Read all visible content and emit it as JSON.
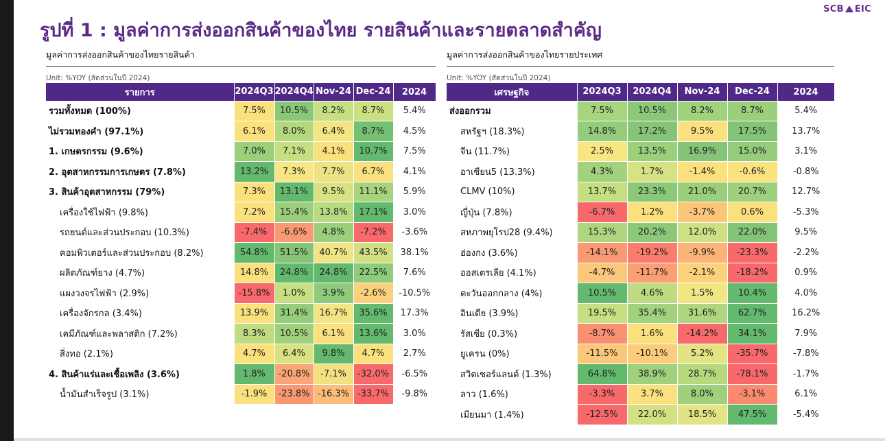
{
  "brand": {
    "left": "SCB",
    "right": "EIC"
  },
  "title": "รูปที่ 1 : มูลค่าการส่งออกสินค้าของไทย รายสินค้าและรายตลาดสำคัญ",
  "left": {
    "subtitle": "มูลค่าการส่งออกสินค้าของไทยรายสินค้า",
    "unit": "Unit: %YOY (สัดส่วนในปี 2024)",
    "headers": [
      "รายการ",
      "2024Q3",
      "2024Q4",
      "Nov-24",
      "Dec-24",
      "2024"
    ],
    "rows": [
      {
        "name": "รวมทั้งหมด (100%)",
        "style": "bold",
        "values": [
          "7.5%",
          "10.5%",
          "8.2%",
          "8.7%",
          "5.4%"
        ],
        "colors": [
          "#fbe17e",
          "#88c878",
          "#c6df82",
          "#c9e083"
        ]
      },
      {
        "name": "ไม่รวมทองคำ (97.1%)",
        "style": "bold",
        "values": [
          "6.1%",
          "8.0%",
          "6.4%",
          "8.7%",
          "4.5%"
        ],
        "colors": [
          "#fbe17e",
          "#b4d87e",
          "#f3e583",
          "#76c073"
        ]
      },
      {
        "name": "1. เกษตรกรรม (9.6%)",
        "style": "bold",
        "values": [
          "7.0%",
          "7.1%",
          "4.1%",
          "10.7%",
          "7.5%"
        ],
        "colors": [
          "#9ccf7c",
          "#c7df82",
          "#fbe17e",
          "#63b96e"
        ]
      },
      {
        "name": "2. อุตสาหกรรมการเกษตร (7.8%)",
        "style": "bold",
        "values": [
          "13.2%",
          "7.3%",
          "7.7%",
          "6.7%",
          "4.1%"
        ],
        "colors": [
          "#63b96e",
          "#f6e684",
          "#ece484",
          "#fbe17e"
        ]
      },
      {
        "name": "3. สินค้าอุตสาหกรรม (79%)",
        "style": "bold",
        "values": [
          "7.3%",
          "13.1%",
          "9.5%",
          "11.1%",
          "5.9%"
        ],
        "colors": [
          "#fbe17e",
          "#63b96e",
          "#d8e283",
          "#a9d47e"
        ]
      },
      {
        "name": "เครื่องใช้ไฟฟ้า (9.8%)",
        "style": "indent",
        "values": [
          "7.2%",
          "15.4%",
          "13.8%",
          "17.1%",
          "3.0%"
        ],
        "colors": [
          "#fbe17e",
          "#9ccf7c",
          "#b9da80",
          "#63b96e"
        ]
      },
      {
        "name": "รถยนต์และส่วนประกอบ (10.3%)",
        "style": "indent",
        "values": [
          "-7.4%",
          "-6.6%",
          "4.8%",
          "-7.2%",
          "-3.6%"
        ],
        "colors": [
          "#f8696b",
          "#fa9a74",
          "#9ccf7c",
          "#f8696b"
        ]
      },
      {
        "name": "คอมพิวเตอร์และส่วนประกอบ (8.2%)",
        "style": "indent",
        "values": [
          "54.8%",
          "51.5%",
          "40.7%",
          "43.5%",
          "38.1%"
        ],
        "colors": [
          "#63b96e",
          "#86c577",
          "#f0e584",
          "#d2e083"
        ]
      },
      {
        "name": "ผลิตภัณฑ์ยาง (4.7%)",
        "style": "indent",
        "values": [
          "14.8%",
          "24.8%",
          "24.8%",
          "22.5%",
          "7.6%"
        ],
        "colors": [
          "#fbe17e",
          "#63b96e",
          "#63b96e",
          "#8fcb7a"
        ]
      },
      {
        "name": "แผงวงจรไฟฟ้า (2.9%)",
        "style": "indent",
        "values": [
          "-15.8%",
          "1.0%",
          "3.9%",
          "-2.6%",
          "-10.5%"
        ],
        "colors": [
          "#f8696b",
          "#c6df82",
          "#8fcb7a",
          "#fbd27b"
        ]
      },
      {
        "name": "เครื่องจักรกล (3.4%)",
        "style": "indent",
        "values": [
          "13.9%",
          "31.4%",
          "16.7%",
          "35.6%",
          "17.3%"
        ],
        "colors": [
          "#fbe17e",
          "#96cd7b",
          "#f1e584",
          "#63b96e"
        ]
      },
      {
        "name": "เคมีภัณฑ์และพลาสติก (7.2%)",
        "style": "indent",
        "values": [
          "8.3%",
          "10.5%",
          "6.1%",
          "13.6%",
          "3.0%"
        ],
        "colors": [
          "#bfdc81",
          "#9fd07c",
          "#fbe17e",
          "#63b96e"
        ]
      },
      {
        "name": "สิ่งทอ (2.1%)",
        "style": "indent",
        "values": [
          "4.7%",
          "6.4%",
          "9.8%",
          "4.7%",
          "2.7%"
        ],
        "colors": [
          "#fbe17e",
          "#d8e283",
          "#63b96e",
          "#fbe17e"
        ]
      },
      {
        "name": "4. สินค้าแร่และเชื้อเพลิง (3.6%)",
        "style": "bold",
        "values": [
          "1.8%",
          "-20.8%",
          "-7.1%",
          "-32.0%",
          "-6.5%"
        ],
        "colors": [
          "#63b96e",
          "#faa576",
          "#f2e182",
          "#f8696b"
        ]
      },
      {
        "name": "น้ำมันสำเร็จรูป (3.1%)",
        "style": "indent",
        "values": [
          "-1.9%",
          "-23.8%",
          "-16.3%",
          "-33.7%",
          "-9.8%"
        ],
        "colors": [
          "#fbe17e",
          "#f99873",
          "#fbbd79",
          "#f8696b"
        ]
      }
    ]
  },
  "right": {
    "subtitle": "มูลค่าการส่งออกสินค้าของไทยรายประเทศ",
    "unit": "Unit: %YOY (สัดส่วนในปี 2024)",
    "headers": [
      "เศรษฐกิจ",
      "2024Q3",
      "2024Q4",
      "Nov-24",
      "Dec-24",
      "2024"
    ],
    "rows": [
      {
        "name": "ส่งออกรวม",
        "style": "bold",
        "values": [
          "7.5%",
          "10.5%",
          "8.2%",
          "8.7%",
          "5.4%"
        ],
        "colors": [
          "#a7d47e",
          "#8bc979",
          "#a0d17d",
          "#9ccf7c"
        ]
      },
      {
        "name": "สหรัฐฯ (18.3%)",
        "style": "indent",
        "values": [
          "14.8%",
          "17.2%",
          "9.5%",
          "17.5%",
          "13.7%"
        ],
        "colors": [
          "#94cc7b",
          "#86c577",
          "#fbe17e",
          "#84c477"
        ]
      },
      {
        "name": "จีน (11.7%)",
        "style": "indent",
        "values": [
          "2.5%",
          "13.5%",
          "16.9%",
          "15.0%",
          "3.1%"
        ],
        "colors": [
          "#f8e683",
          "#9ccf7c",
          "#86c577",
          "#94cc7b"
        ]
      },
      {
        "name": "อาเซียน5 (13.3%)",
        "style": "indent",
        "values": [
          "4.3%",
          "1.7%",
          "-1.4%",
          "-0.6%",
          "-0.8%"
        ],
        "colors": [
          "#a2d27d",
          "#d6e283",
          "#fbe17e",
          "#fbe27f"
        ]
      },
      {
        "name": "CLMV (10%)",
        "style": "indent",
        "values": [
          "13.7%",
          "23.3%",
          "21.0%",
          "20.7%",
          "12.7%"
        ],
        "colors": [
          "#c4de82",
          "#8bc979",
          "#9ccf7c",
          "#9fd07c"
        ]
      },
      {
        "name": "ญี่ปุ่น (7.8%)",
        "style": "indent",
        "values": [
          "-6.7%",
          "1.2%",
          "-3.7%",
          "0.6%",
          "-5.3%"
        ],
        "colors": [
          "#f8696b",
          "#fbe17e",
          "#fbc57a",
          "#fbe17e"
        ]
      },
      {
        "name": "สหภาพยุโรป28 (9.4%)",
        "style": "indent",
        "values": [
          "15.3%",
          "20.2%",
          "12.0%",
          "22.0%",
          "9.5%"
        ],
        "colors": [
          "#aed67f",
          "#8bc979",
          "#cde083",
          "#84c477"
        ]
      },
      {
        "name": "ฮ่องกง (3.6%)",
        "style": "indent",
        "values": [
          "-14.1%",
          "-19.2%",
          "-9.9%",
          "-23.3%",
          "-2.2%"
        ],
        "colors": [
          "#fa9a74",
          "#f97c6e",
          "#fbb377",
          "#f8696b"
        ]
      },
      {
        "name": "ออสเตรเลีย (4.1%)",
        "style": "indent",
        "values": [
          "-4.7%",
          "-11.7%",
          "-2.1%",
          "-18.2%",
          "0.9%"
        ],
        "colors": [
          "#fbc77a",
          "#fa9e74",
          "#fbd27b",
          "#f8696b"
        ]
      },
      {
        "name": "ตะวันออกกลาง (4%)",
        "style": "indent",
        "values": [
          "10.5%",
          "4.6%",
          "1.5%",
          "10.4%",
          "4.0%"
        ],
        "colors": [
          "#63b96e",
          "#bddb80",
          "#f1e584",
          "#63b96e"
        ]
      },
      {
        "name": "อินเดีย (3.9%)",
        "style": "indent",
        "values": [
          "19.5%",
          "35.4%",
          "31.6%",
          "62.7%",
          "16.2%"
        ],
        "colors": [
          "#c6df82",
          "#a2d27d",
          "#aed67f",
          "#63b96e"
        ]
      },
      {
        "name": "รัสเซีย (0.3%)",
        "style": "indent",
        "values": [
          "-8.7%",
          "1.6%",
          "-14.2%",
          "34.1%",
          "7.9%"
        ],
        "colors": [
          "#fa9072",
          "#fbe17e",
          "#f8696b",
          "#63b96e"
        ]
      },
      {
        "name": "ยูเครน (0%)",
        "style": "indent",
        "values": [
          "-11.5%",
          "-10.1%",
          "5.2%",
          "-35.7%",
          "-7.8%"
        ],
        "colors": [
          "#fbc87a",
          "#fbcc7b",
          "#e3e384",
          "#f8696b"
        ]
      },
      {
        "name": "สวิตเซอร์แลนด์ (1.3%)",
        "style": "indent",
        "values": [
          "64.8%",
          "38.9%",
          "28.7%",
          "-78.1%",
          "-1.7%"
        ],
        "colors": [
          "#63b96e",
          "#9fd07c",
          "#b6d97f",
          "#f8696b"
        ]
      },
      {
        "name": "ลาว (1.6%)",
        "style": "indent",
        "values": [
          "-3.3%",
          "3.7%",
          "8.0%",
          "-3.1%",
          "6.1%"
        ],
        "colors": [
          "#f8696b",
          "#fbe17e",
          "#9fd07c",
          "#fa8b71"
        ]
      },
      {
        "name": "เมียนมา (1.4%)",
        "style": "indent",
        "values": [
          "-12.5%",
          "22.0%",
          "18.5%",
          "47.5%",
          "-5.4%"
        ],
        "colors": [
          "#f8696b",
          "#d3e183",
          "#e1e384",
          "#63b96e"
        ]
      }
    ]
  }
}
